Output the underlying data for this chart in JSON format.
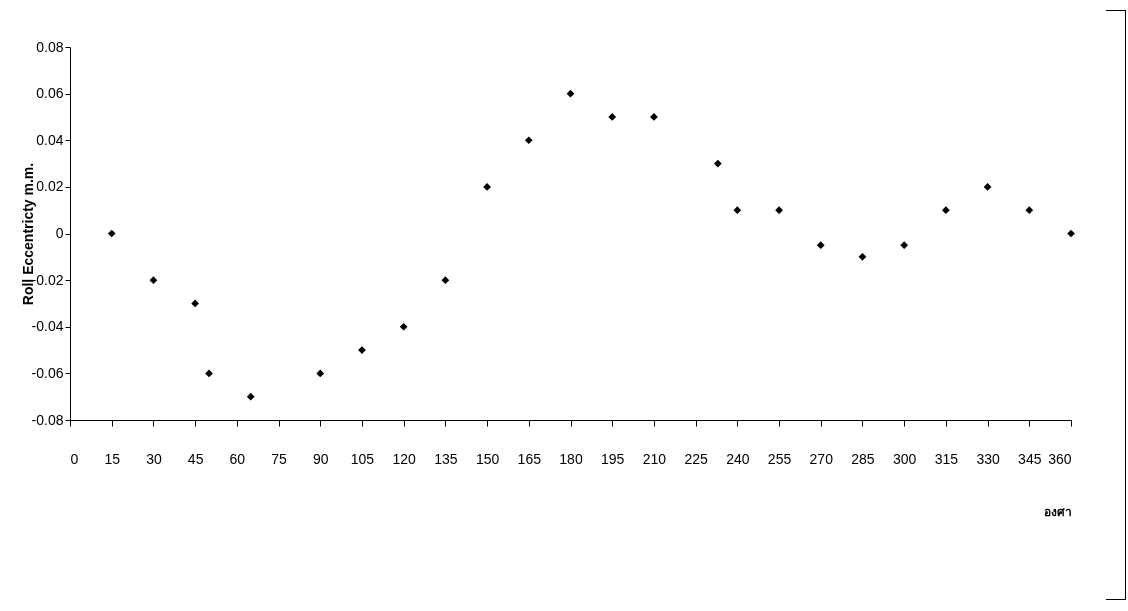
{
  "chart_data": {
    "type": "scatter",
    "xlabel": "องศา",
    "ylabel": "Roll Eccentricty m.m.",
    "x": [
      15,
      30,
      45,
      50,
      65,
      90,
      105,
      120,
      135,
      150,
      165,
      180,
      195,
      210,
      233,
      240,
      255,
      270,
      285,
      300,
      315,
      330,
      345,
      360
    ],
    "series": [
      {
        "color": "#000000",
        "values": [
          0,
          -0.02,
          -0.03,
          -0.06,
          -0.07,
          -0.06,
          -0.05,
          -0.04,
          -0.02,
          0.02,
          0.04,
          0.06,
          0.05,
          0.05,
          0.03,
          0.01,
          0.01,
          -0.005,
          -0.01,
          -0.005,
          0.01,
          0.02,
          0.01,
          0
        ]
      }
    ],
    "xlim": [
      0,
      360
    ],
    "xticks": [
      0,
      15,
      30,
      45,
      60,
      75,
      90,
      105,
      120,
      135,
      150,
      165,
      180,
      195,
      210,
      225,
      240,
      255,
      270,
      285,
      300,
      315,
      330,
      345,
      360
    ],
    "ylim": [
      -0.08,
      0.08
    ],
    "yticks": [
      -0.08,
      -0.06,
      -0.04,
      -0.02,
      0,
      0.02,
      0.04,
      0.06,
      0.08
    ],
    "grid": false,
    "marker": "diamond"
  }
}
